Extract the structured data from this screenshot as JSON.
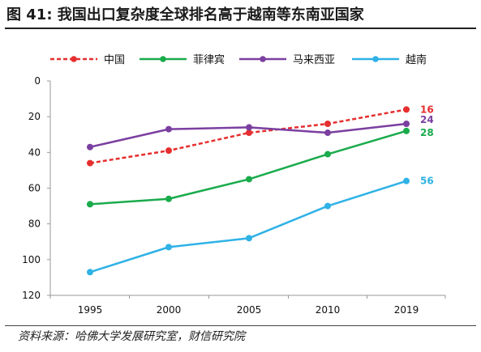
{
  "title": "图 41: 我国出口复杂度全球排名高于越南等东南亚国家",
  "source": "资料来源：哈佛大学发展研究室，财信研究院",
  "chart_data": {
    "type": "line",
    "categories": [
      "1995",
      "2000",
      "2005",
      "2010",
      "2019"
    ],
    "y_axis": {
      "min": 0,
      "max": 120,
      "ticks": [
        0,
        20,
        40,
        60,
        80,
        100,
        120
      ],
      "reversed": true
    },
    "grid": false,
    "legend_position": "top",
    "series": [
      {
        "name": "中国",
        "values": [
          46,
          39,
          29,
          24,
          16
        ],
        "color": "#e62e2e",
        "style": "dashed",
        "end_label": "16"
      },
      {
        "name": "菲律宾",
        "values": [
          69,
          66,
          55,
          41,
          28
        ],
        "color": "#1aab4c",
        "style": "solid",
        "end_label": "28"
      },
      {
        "name": "马来西亚",
        "values": [
          37,
          27,
          26,
          29,
          24
        ],
        "color": "#7b3fa0",
        "style": "solid",
        "end_label": "24"
      },
      {
        "name": "越南",
        "values": [
          107,
          93,
          88,
          70,
          56
        ],
        "color": "#2fb2e6",
        "style": "solid",
        "end_label": "56"
      }
    ]
  }
}
